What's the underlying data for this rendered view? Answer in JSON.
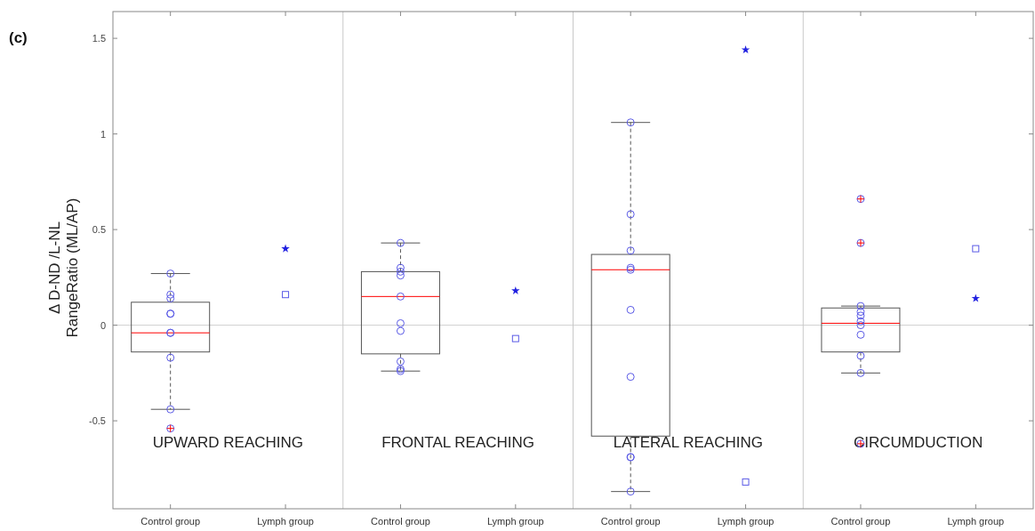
{
  "chart_data": {
    "type": "box",
    "title": "(c)",
    "ylabel": "Δ D-ND /L-NL\nRangeRatio (ML/AP)",
    "categories": [
      "Control group",
      "Lymph group",
      "Control group",
      "Lymph group",
      "Control group",
      "Lymph group",
      "Control group",
      "Lymph group"
    ],
    "ylim": [
      -0.96,
      1.64
    ],
    "yticks": [
      -0.5,
      0,
      0.5,
      1,
      1.5
    ],
    "grid": false,
    "boxes": [
      {
        "low": -0.44,
        "q1": -0.14,
        "median": -0.04,
        "q3": 0.12,
        "high": 0.27,
        "outliers": [
          -0.54
        ]
      },
      null,
      {
        "low": -0.24,
        "q1": -0.15,
        "median": 0.15,
        "q3": 0.28,
        "high": 0.43
      },
      null,
      {
        "low": -0.87,
        "q1": -0.58,
        "median": 0.29,
        "q3": 0.37,
        "high": 1.06
      },
      null,
      {
        "low": -0.25,
        "q1": -0.14,
        "median": 0.01,
        "q3": 0.09,
        "high": 0.1,
        "outliers": [
          0.66,
          0.43,
          -0.62
        ]
      },
      null
    ],
    "series": [
      {
        "type": "scatter",
        "marker": "circle",
        "color": "#5a5ae6",
        "values": [
          0.27,
          null,
          0.43,
          null,
          1.06,
          null,
          0.1,
          null
        ]
      },
      {
        "type": "scatter",
        "marker": "circle",
        "color": "#5a5ae6",
        "values": [
          0.16,
          null,
          0.3,
          null,
          0.58,
          null,
          0.07,
          null
        ]
      },
      {
        "type": "scatter",
        "marker": "circle",
        "color": "#5a5ae6",
        "values": [
          0.14,
          null,
          0.28,
          null,
          0.39,
          null,
          0.05,
          null
        ]
      },
      {
        "type": "scatter",
        "marker": "circle",
        "color": "#5a5ae6",
        "values": [
          0.06,
          null,
          0.26,
          null,
          0.3,
          null,
          0.02,
          null
        ]
      },
      {
        "type": "scatter",
        "marker": "circle",
        "color": "#5a5ae6",
        "values": [
          0.06,
          null,
          0.15,
          null,
          0.29,
          null,
          0.0,
          null
        ]
      },
      {
        "type": "scatter",
        "marker": "circle",
        "color": "#5a5ae6",
        "values": [
          -0.04,
          null,
          0.01,
          null,
          0.08,
          null,
          -0.05,
          null
        ]
      },
      {
        "type": "scatter",
        "marker": "circle",
        "color": "#5a5ae6",
        "values": [
          -0.04,
          null,
          -0.03,
          null,
          -0.27,
          null,
          -0.16,
          null
        ]
      },
      {
        "type": "scatter",
        "marker": "circle",
        "color": "#5a5ae6",
        "values": [
          -0.17,
          null,
          -0.19,
          null,
          -0.69,
          null,
          -0.25,
          null
        ]
      },
      {
        "type": "scatter",
        "marker": "circle",
        "color": "#5a5ae6",
        "values": [
          -0.44,
          null,
          -0.23,
          null,
          -0.69,
          null,
          null,
          null
        ]
      },
      {
        "type": "scatter",
        "marker": "circle",
        "color": "#5a5ae6",
        "values": [
          null,
          null,
          -0.24,
          null,
          -0.87,
          null,
          null,
          null
        ]
      },
      {
        "type": "scatter",
        "marker": "star",
        "color": "#2020e0",
        "values": [
          null,
          0.4,
          null,
          0.18,
          null,
          1.44,
          null,
          0.14
        ]
      },
      {
        "type": "scatter",
        "marker": "square",
        "color": "#5a5ae6",
        "values": [
          null,
          0.16,
          null,
          -0.07,
          null,
          -0.82,
          null,
          0.4
        ]
      }
    ],
    "ref_lines": [
      {
        "axis": "y",
        "value": 0,
        "color": "#d0d0d0"
      }
    ],
    "annotations": [
      "UPWARD REACHING",
      "FRONTAL REACHING",
      "LATERAL REACHING",
      "CIRCUMDUCTION"
    ]
  }
}
